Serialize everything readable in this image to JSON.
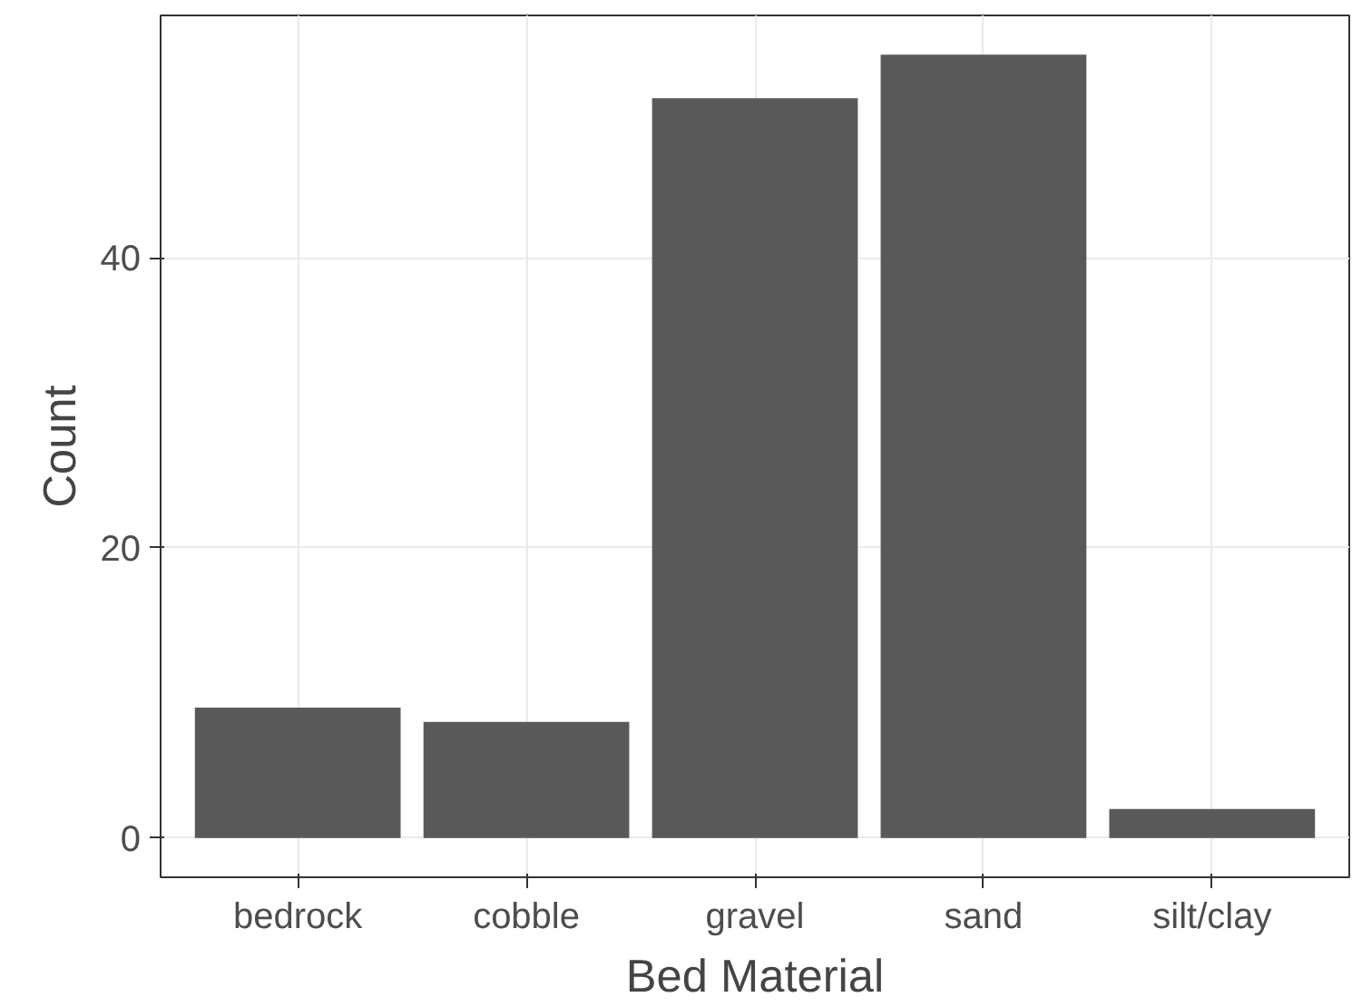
{
  "chart_data": {
    "type": "bar",
    "xlabel": "Bed Material",
    "ylabel": "Count",
    "categories": [
      "bedrock",
      "cobble",
      "gravel",
      "sand",
      "silt/clay"
    ],
    "values": [
      9,
      8,
      51,
      54,
      2
    ],
    "color": "#595959",
    "ylim": [
      -2.7,
      56.7
    ],
    "yticks": [
      0,
      20,
      40
    ],
    "grid": true
  }
}
